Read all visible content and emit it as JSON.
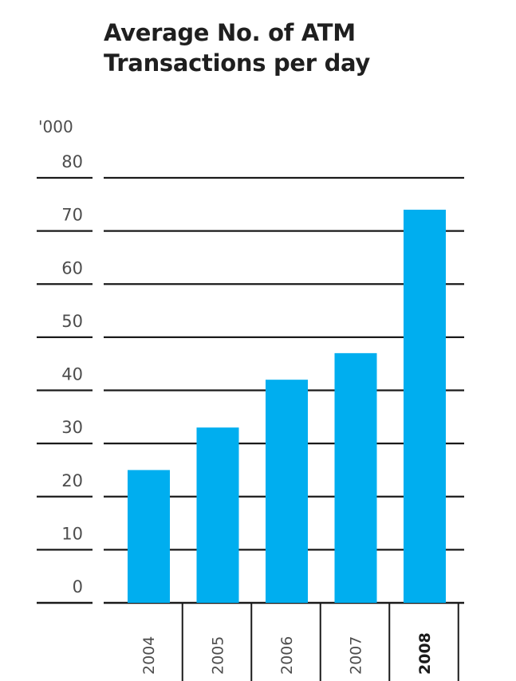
{
  "chart_data": {
    "type": "bar",
    "title_lines": [
      "Average No. of ATM",
      "Transactions per day"
    ],
    "unit_label": "'000",
    "categories": [
      "2004",
      "2005",
      "2006",
      "2007",
      "2008"
    ],
    "values": [
      25,
      33,
      42,
      47,
      74
    ],
    "highlighted_category": "2008",
    "yticks": [
      0,
      10,
      20,
      30,
      40,
      50,
      60,
      70,
      80
    ],
    "ylim": [
      0,
      80
    ],
    "grid": true,
    "bar_color": "#00aeef",
    "grid_color": "#1a1a1a"
  }
}
